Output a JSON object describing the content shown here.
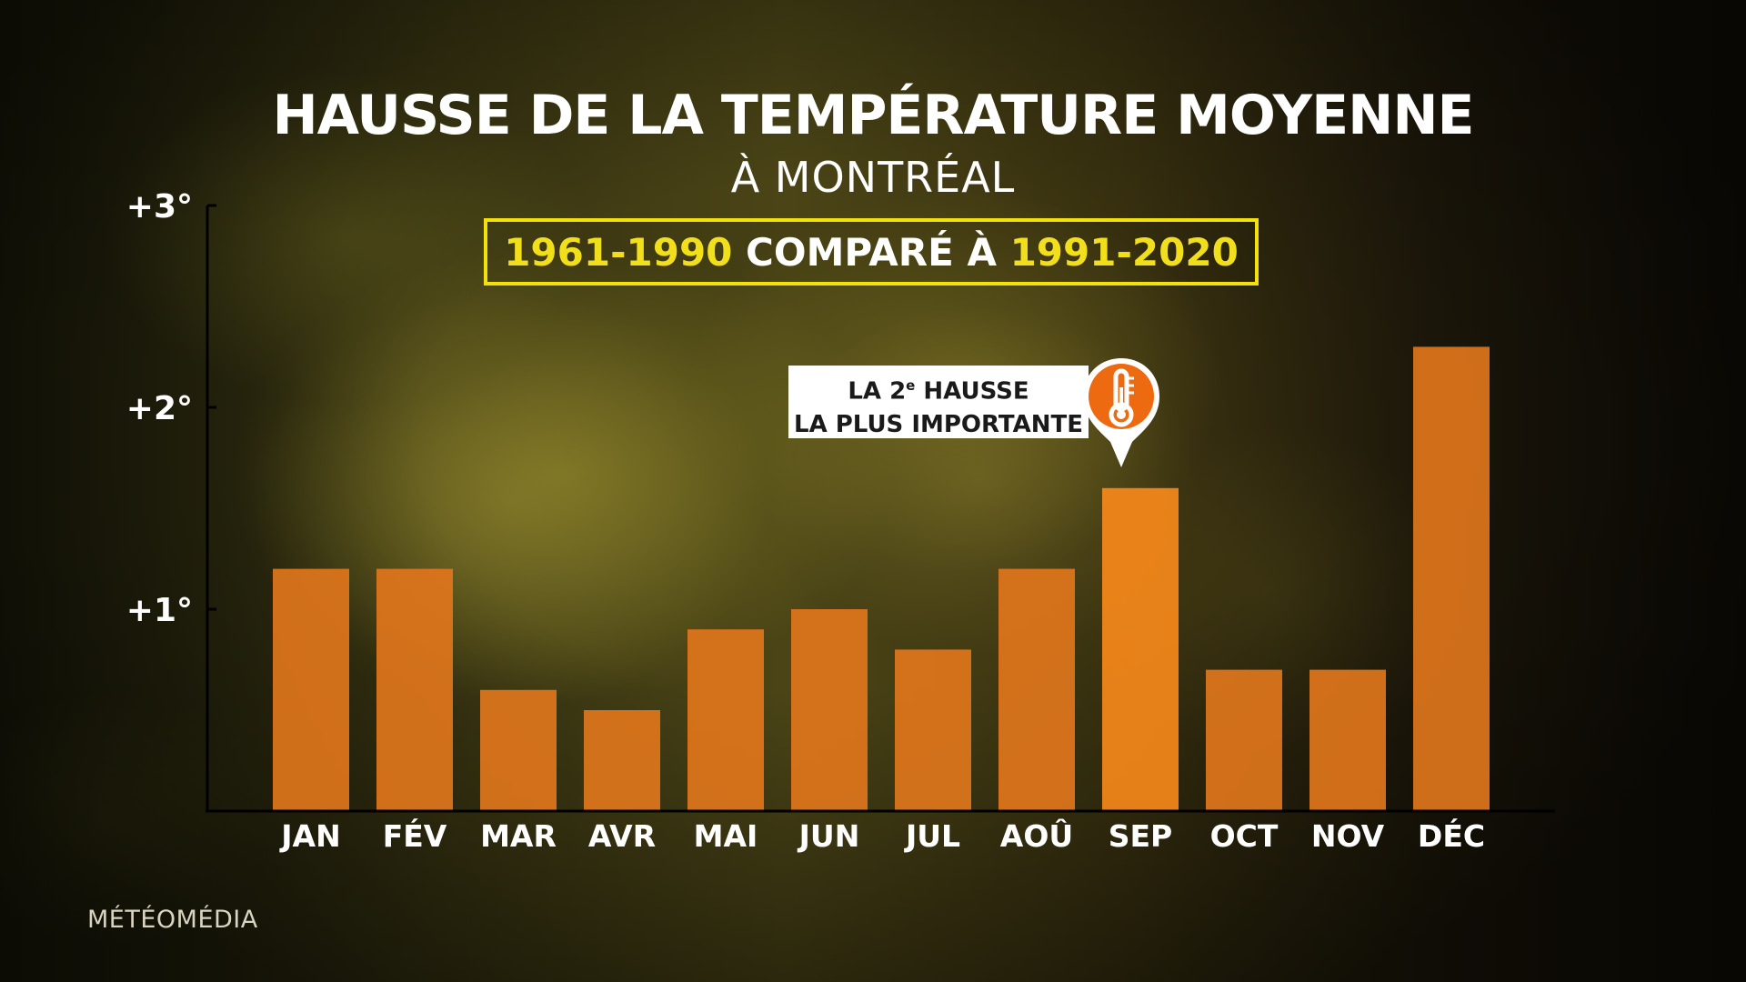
{
  "title": "HAUSSE DE LA TEMPÉRATURE MOYENNE",
  "subtitle": "À MONTRÉAL",
  "period": {
    "start": "1961-1990",
    "middle": " COMPARÉ À ",
    "end": "1991-2020"
  },
  "callout": {
    "line1_prefix": "LA 2",
    "line1_sup": "e",
    "line1_suffix": " HAUSSE",
    "line2": "LA PLUS IMPORTANTE",
    "icon": "thermometer-icon"
  },
  "brand": "MÉTÉOMÉDIA",
  "colors": {
    "bar": "#e0761c",
    "highlight": "#ff8c1a",
    "period_box": "#f5e10a",
    "period_years": "#f2df1c",
    "axis": "#000000"
  },
  "chart_data": {
    "type": "bar",
    "title": "HAUSSE DE LA TEMPÉRATURE MOYENNE",
    "subtitle": "À MONTRÉAL",
    "categories": [
      "JAN",
      "FÉV",
      "MAR",
      "AVR",
      "MAI",
      "JUN",
      "JUL",
      "AOÛ",
      "SEP",
      "OCT",
      "NOV",
      "DÉC"
    ],
    "values": [
      1.2,
      1.2,
      0.6,
      0.5,
      0.9,
      1.0,
      0.8,
      1.2,
      1.6,
      0.7,
      0.7,
      2.3
    ],
    "ylim": [
      0,
      3
    ],
    "yticks": [
      1,
      2,
      3
    ],
    "ytick_labels": [
      "+1°",
      "+2°",
      "+3°"
    ],
    "xlabel": "",
    "ylabel": "",
    "grid": false,
    "annotation": {
      "category": "SEP",
      "text": "LA 2e HAUSSE LA PLUS IMPORTANTE"
    }
  }
}
